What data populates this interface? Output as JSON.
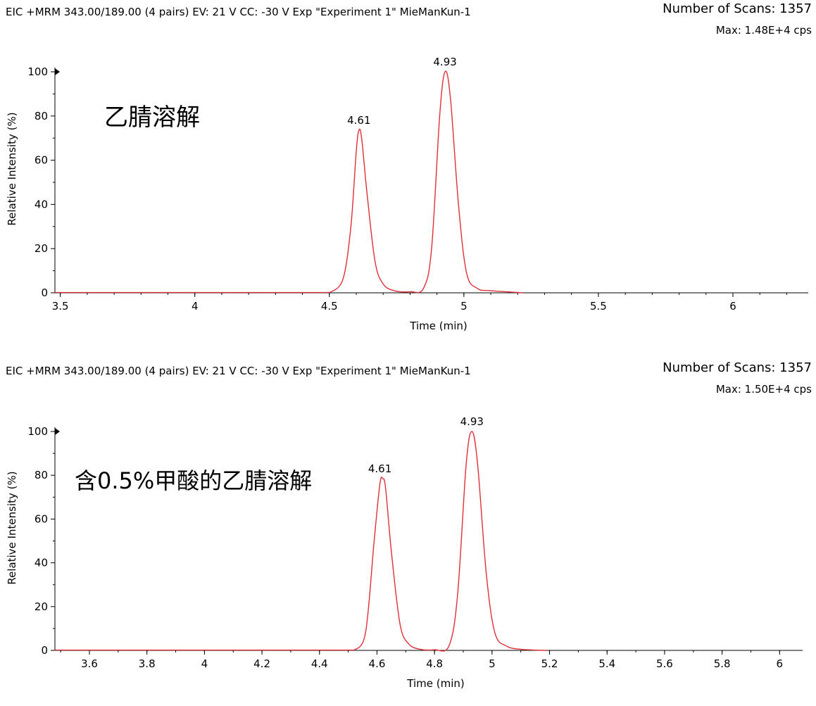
{
  "chart_data": [
    {
      "type": "line",
      "header": "EIC +MRM 343.00/189.00 (4 pairs) EV: 21 V CC: -30 V Exp \"Experiment 1\" MieManKun-1",
      "scans": "Number of Scans: 1357",
      "max": "Max: 1.48E+4 cps",
      "annotation": "乙腈溶解",
      "xlabel": "Time (min)",
      "ylabel": "Relative Intensity (%)",
      "xlim": [
        3.48,
        6.28
      ],
      "ylim": [
        0,
        100
      ],
      "xticks": [
        "3.5",
        "4",
        "4.5",
        "5",
        "5.5",
        "6"
      ],
      "yticks": [
        "0",
        "20",
        "40",
        "60",
        "80",
        "100"
      ],
      "peaks": [
        {
          "x": 4.61,
          "label": "4.61",
          "height": 73.5
        },
        {
          "x": 4.93,
          "label": "4.93",
          "height": 100
        }
      ],
      "line_color": "#e0303a",
      "series": [
        {
          "x": [
            4.5,
            4.55,
            4.58,
            4.6,
            4.61,
            4.62,
            4.64,
            4.67,
            4.7,
            4.74,
            4.8,
            4.85,
            4.88,
            4.91,
            4.93,
            4.95,
            4.98,
            5.01,
            5.05,
            5.1,
            5.22
          ],
          "y": [
            0,
            6,
            30,
            64,
            73.5,
            70,
            45,
            14,
            4,
            1,
            0.5,
            2,
            20,
            80,
            100,
            88,
            40,
            9,
            2,
            1,
            0
          ]
        }
      ]
    },
    {
      "type": "line",
      "header": "EIC +MRM 343.00/189.00 (4 pairs) EV: 21 V CC: -30 V Exp \"Experiment 1\" MieManKun-1",
      "scans": "Number of Scans: 1357",
      "max": "Max: 1.50E+4 cps",
      "annotation": "含0.5%甲酸的乙腈溶解",
      "xlabel": "Time (min)",
      "ylabel": "Relative Intensity (%)",
      "xlim": [
        3.48,
        6.08
      ],
      "ylim": [
        0,
        100
      ],
      "xticks": [
        "3.6",
        "3.8",
        "4",
        "4.2",
        "4.4",
        "4.6",
        "4.8",
        "5",
        "5.2",
        "5.4",
        "5.6",
        "5.8",
        "6"
      ],
      "yticks": [
        "0",
        "20",
        "40",
        "60",
        "80",
        "100"
      ],
      "peaks": [
        {
          "x": 4.61,
          "label": "4.61",
          "height": 78.5
        },
        {
          "x": 4.93,
          "label": "4.93",
          "height": 100
        }
      ],
      "line_color": "#e0303a",
      "series": [
        {
          "x": [
            4.52,
            4.56,
            4.59,
            4.61,
            4.62,
            4.63,
            4.65,
            4.68,
            4.71,
            4.75,
            4.8,
            4.85,
            4.88,
            4.91,
            4.93,
            4.95,
            4.98,
            5.01,
            5.05,
            5.1,
            5.19
          ],
          "y": [
            0,
            8,
            50,
            76,
            78.5,
            74,
            45,
            12,
            3,
            0.5,
            0.3,
            2,
            25,
            85,
            100,
            85,
            35,
            8,
            2,
            0.5,
            0
          ]
        }
      ]
    }
  ]
}
